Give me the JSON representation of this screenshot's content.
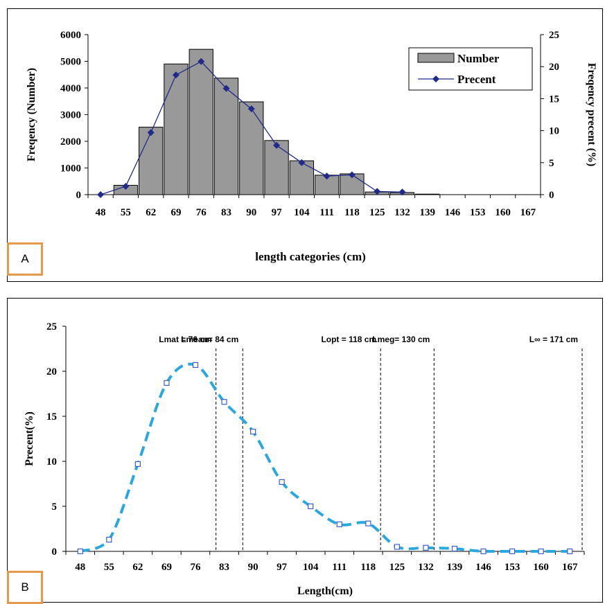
{
  "panels": {
    "a_tag": "A",
    "b_tag": "B"
  },
  "chart_data": [
    {
      "type": "bar",
      "categories": [
        "48",
        "55",
        "62",
        "69",
        "76",
        "83",
        "90",
        "97",
        "104",
        "111",
        "118",
        "125",
        "132",
        "139",
        "146",
        "153",
        "160",
        "167"
      ],
      "series": [
        {
          "name": "Number",
          "type": "bar",
          "axis": "left",
          "values": [
            0,
            350,
            2530,
            4900,
            5450,
            4370,
            3480,
            2030,
            1270,
            730,
            780,
            100,
            80,
            20,
            10,
            10,
            10,
            10
          ]
        },
        {
          "name": "Precent",
          "type": "line",
          "axis": "right",
          "values": [
            0,
            1.3,
            9.7,
            18.7,
            20.8,
            16.6,
            13.4,
            7.7,
            5.0,
            2.9,
            3.1,
            0.5,
            0.4,
            0.1,
            0.05,
            0.05,
            0.05,
            0.05
          ]
        }
      ],
      "xlabel": "length categories (cm)",
      "ylabel": "Freqency (Number)",
      "y2label": "Freqency precent (%)",
      "ylim": [
        0,
        6000
      ],
      "yticks": [
        "0",
        "1000",
        "2000",
        "3000",
        "4000",
        "5000",
        "6000"
      ],
      "y2lim": [
        0,
        25
      ],
      "y2ticks": [
        "0",
        "5",
        "10",
        "15",
        "20",
        "25"
      ],
      "grid": false,
      "legend": "top-right",
      "colors": {
        "bar": "#999999",
        "line": "#1f2a8a"
      }
    },
    {
      "type": "line",
      "categories": [
        "48",
        "55",
        "62",
        "69",
        "76",
        "83",
        "90",
        "97",
        "104",
        "111",
        "118",
        "125",
        "132",
        "139",
        "146",
        "153",
        "160",
        "167"
      ],
      "series": [
        {
          "values": [
            0,
            1.3,
            9.7,
            18.7,
            20.7,
            16.6,
            13.3,
            7.7,
            5.0,
            3.0,
            3.1,
            0.5,
            0.4,
            0.3,
            0.0,
            0.0,
            0.0,
            0.0
          ]
        }
      ],
      "xlabel": "Length(cm)",
      "ylabel": "Precent(%)",
      "ylim": [
        0,
        25
      ],
      "yticks": [
        "0",
        "5",
        "10",
        "15",
        "20",
        "25"
      ],
      "annotations": [
        {
          "text": "Lmat = 76 cm",
          "x": 81
        },
        {
          "text": "Lmean= 84 cm",
          "x": 87.5
        },
        {
          "text": "Lopt = 118 cm",
          "x": 121
        },
        {
          "text": "Lmeg= 130 cm",
          "x": 134
        },
        {
          "text": "L∞ = 171 cm",
          "x": 170
        }
      ],
      "grid": false,
      "colors": {
        "line": "#29a8e0",
        "marker": "#3a5fcd"
      }
    }
  ]
}
